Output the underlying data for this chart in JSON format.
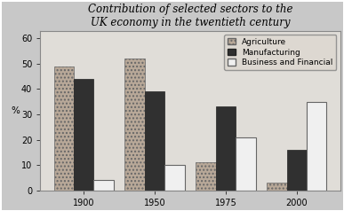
{
  "title_line1": "Contribution of selected sectors to the",
  "title_line2": "UK economy in the twentieth century",
  "years": [
    "1900",
    "1950",
    "1975",
    "2000"
  ],
  "agriculture": [
    49,
    52,
    11,
    3
  ],
  "manufacturing": [
    44,
    39,
    33,
    16
  ],
  "business": [
    4,
    10,
    21,
    35
  ],
  "ylabel": "%",
  "ylim": [
    0,
    63
  ],
  "yticks": [
    0,
    10,
    20,
    30,
    40,
    50,
    60
  ],
  "legend_labels": [
    "Agriculture",
    "Manufacturing",
    "Business and Financial"
  ],
  "agri_color": "#b8a898",
  "agri_hatch": "....",
  "manuf_color": "#303030",
  "biz_color": "#f0f0f0",
  "bar_width": 0.28,
  "plot_bg": "#e0ddd8",
  "fig_bg": "#c8c8c8",
  "border_color": "#888888",
  "title_fontsize": 8.5,
  "label_fontsize": 7.5,
  "legend_fontsize": 6.5,
  "tick_fontsize": 7
}
